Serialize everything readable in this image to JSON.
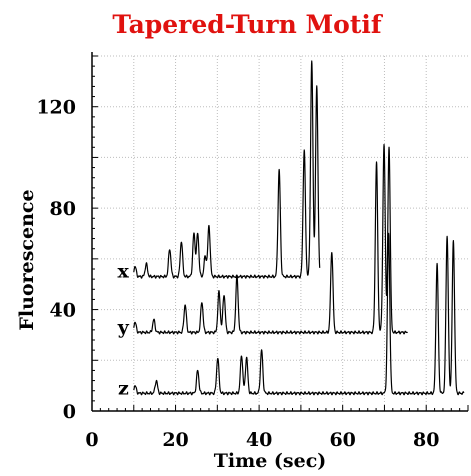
{
  "colors": {
    "title": "#e0120f",
    "axes": "#000000",
    "grid": "#bdbdbd",
    "trace": "#000000"
  },
  "chart_data": {
    "type": "line",
    "title": "Tapered-Turn Motif",
    "xlabel": "Time (sec)",
    "ylabel": "Fluorescence",
    "xlim": [
      0,
      90
    ],
    "ylim": [
      0,
      140
    ],
    "xticks": [
      0,
      20,
      40,
      60,
      80
    ],
    "yticks": [
      0,
      40,
      80,
      120
    ],
    "xtick_labels": [
      "0",
      "20",
      "40",
      "60",
      "80"
    ],
    "ytick_labels": [
      "0",
      "40",
      "80",
      "120"
    ],
    "grid": true,
    "series": [
      {
        "name": "x",
        "baseline": 53,
        "x_range": [
          10,
          54.5
        ],
        "peaks": [
          {
            "t": 10.3,
            "h": 4
          },
          {
            "t": 13.0,
            "h": 5
          },
          {
            "t": 18.6,
            "h": 11
          },
          {
            "t": 21.4,
            "h": 14
          },
          {
            "t": 24.4,
            "h": 17
          },
          {
            "t": 25.3,
            "h": 17
          },
          {
            "t": 27.1,
            "h": 8
          },
          {
            "t": 28.0,
            "h": 20
          },
          {
            "t": 44.8,
            "h": 42
          },
          {
            "t": 50.8,
            "h": 50
          },
          {
            "t": 52.6,
            "h": 85
          },
          {
            "t": 53.8,
            "h": 75
          }
        ]
      },
      {
        "name": "y",
        "baseline": 31,
        "x_range": [
          10,
          75.5
        ],
        "peaks": [
          {
            "t": 10.3,
            "h": 4
          },
          {
            "t": 14.8,
            "h": 5
          },
          {
            "t": 22.3,
            "h": 11
          },
          {
            "t": 26.3,
            "h": 12
          },
          {
            "t": 30.4,
            "h": 16
          },
          {
            "t": 31.6,
            "h": 15
          },
          {
            "t": 34.7,
            "h": 22
          },
          {
            "t": 57.4,
            "h": 32
          },
          {
            "t": 68.1,
            "h": 67
          },
          {
            "t": 69.9,
            "h": 74
          },
          {
            "t": 71.1,
            "h": 73
          }
        ]
      },
      {
        "name": "z",
        "baseline": 7,
        "x_range": [
          10,
          89
        ],
        "peaks": [
          {
            "t": 10.3,
            "h": 3
          },
          {
            "t": 15.4,
            "h": 5
          },
          {
            "t": 25.3,
            "h": 9
          },
          {
            "t": 30.1,
            "h": 14
          },
          {
            "t": 35.8,
            "h": 15
          },
          {
            "t": 37.0,
            "h": 14
          },
          {
            "t": 40.6,
            "h": 17
          },
          {
            "t": 71.0,
            "h": 63
          },
          {
            "t": 82.6,
            "h": 51
          },
          {
            "t": 85.0,
            "h": 62
          },
          {
            "t": 86.5,
            "h": 60
          }
        ]
      }
    ]
  }
}
